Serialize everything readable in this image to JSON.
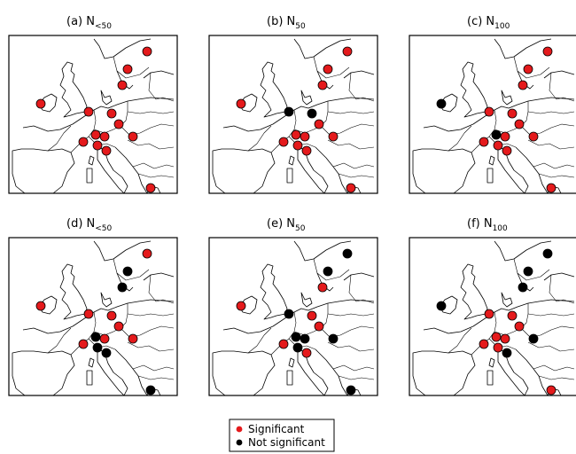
{
  "colors": {
    "significant": "#e41a1c",
    "not_significant": "#000000"
  },
  "legend": {
    "significant_label": "Significant",
    "not_significant_label": "Not significant"
  },
  "panels": [
    {
      "id": "a",
      "prefix": "(a) N",
      "subscript": "<50",
      "stations": [
        "S",
        "S",
        "S",
        "S",
        "S",
        "S",
        "S",
        "S",
        "S",
        "S",
        "S",
        "S",
        "S",
        "S"
      ]
    },
    {
      "id": "b",
      "prefix": "(b) N",
      "subscript": "50",
      "stations": [
        "S",
        "S",
        "S",
        "S",
        "N",
        "N",
        "S",
        "S",
        "S",
        "S",
        "S",
        "S",
        "S",
        "S"
      ]
    },
    {
      "id": "c",
      "prefix": "(c) N",
      "subscript": "100",
      "stations": [
        "S",
        "S",
        "S",
        "N",
        "S",
        "S",
        "S",
        "N",
        "S",
        "S",
        "S",
        "S",
        "S",
        "S"
      ]
    },
    {
      "id": "d",
      "prefix": "(d) N",
      "subscript": "<50",
      "stations": [
        "S",
        "N",
        "N",
        "S",
        "S",
        "S",
        "S",
        "N",
        "N",
        "S",
        "S",
        "N",
        "S",
        "N"
      ]
    },
    {
      "id": "e",
      "prefix": "(e) N",
      "subscript": "50",
      "stations": [
        "N",
        "N",
        "S",
        "S",
        "N",
        "S",
        "S",
        "N",
        "N",
        "N",
        "S",
        "S",
        "N",
        "N"
      ]
    },
    {
      "id": "f",
      "prefix": "(f) N",
      "subscript": "100",
      "stations": [
        "N",
        "N",
        "N",
        "N",
        "S",
        "S",
        "S",
        "S",
        "S",
        "S",
        "S",
        "N",
        "N",
        "S"
      ]
    }
  ]
}
